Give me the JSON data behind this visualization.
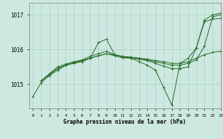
{
  "title": "Graphe pression niveau de la mer (hPa)",
  "bg_color": "#cce8e0",
  "grid_color": "#aacfc8",
  "line_color": "#2d6e2d",
  "ylabel_vals": [
    1015,
    1016,
    1017
  ],
  "xlim": [
    -0.5,
    23
  ],
  "ylim": [
    1014.3,
    1017.35
  ],
  "series": [
    {
      "x": [
        0,
        1,
        2,
        3,
        4,
        5,
        6,
        7,
        8,
        9,
        10,
        11,
        12,
        13,
        14,
        15,
        16,
        17,
        18,
        19,
        20,
        21,
        22,
        23
      ],
      "y": [
        1014.65,
        1015.05,
        1015.25,
        1015.4,
        1015.55,
        1015.6,
        1015.65,
        1015.75,
        1016.2,
        1016.3,
        1015.85,
        1015.8,
        1015.75,
        1015.65,
        1015.55,
        1015.4,
        1014.9,
        1014.4,
        1015.6,
        1015.75,
        1016.05,
        1016.85,
        1017.0,
        1017.05
      ]
    },
    {
      "x": [
        1,
        2,
        3,
        4,
        5,
        6,
        7,
        8,
        9,
        10,
        11,
        12,
        13,
        14,
        15,
        16,
        17,
        18,
        19,
        20,
        21,
        22,
        23
      ],
      "y": [
        1015.1,
        1015.3,
        1015.5,
        1015.58,
        1015.65,
        1015.7,
        1015.8,
        1015.88,
        1015.95,
        1015.85,
        1015.78,
        1015.78,
        1015.75,
        1015.7,
        1015.65,
        1015.6,
        1015.55,
        1015.55,
        1015.6,
        1015.7,
        1016.1,
        1016.95,
        1017.0
      ]
    },
    {
      "x": [
        1,
        2,
        3,
        4,
        5,
        6,
        7,
        8,
        9,
        10,
        11,
        12,
        13,
        14,
        15,
        16,
        17,
        18,
        19,
        20,
        21,
        22,
        23
      ],
      "y": [
        1015.1,
        1015.28,
        1015.45,
        1015.55,
        1015.62,
        1015.68,
        1015.75,
        1015.82,
        1015.88,
        1015.85,
        1015.8,
        1015.78,
        1015.75,
        1015.72,
        1015.68,
        1015.65,
        1015.6,
        1015.6,
        1015.65,
        1015.75,
        1015.85,
        1015.92,
        1015.95
      ]
    },
    {
      "x": [
        1,
        2,
        3,
        4,
        5,
        6,
        7,
        8,
        9,
        10,
        11,
        12,
        13,
        14,
        15,
        16,
        17,
        18,
        19,
        20,
        21,
        22,
        23
      ],
      "y": [
        1015.1,
        1015.28,
        1015.45,
        1015.55,
        1015.62,
        1015.68,
        1015.75,
        1015.82,
        1015.88,
        1015.82,
        1015.76,
        1015.75,
        1015.72,
        1015.68,
        1015.6,
        1015.52,
        1015.45,
        1015.45,
        1015.5,
        1016.05,
        1016.8,
        1016.88,
        1016.9
      ]
    }
  ]
}
